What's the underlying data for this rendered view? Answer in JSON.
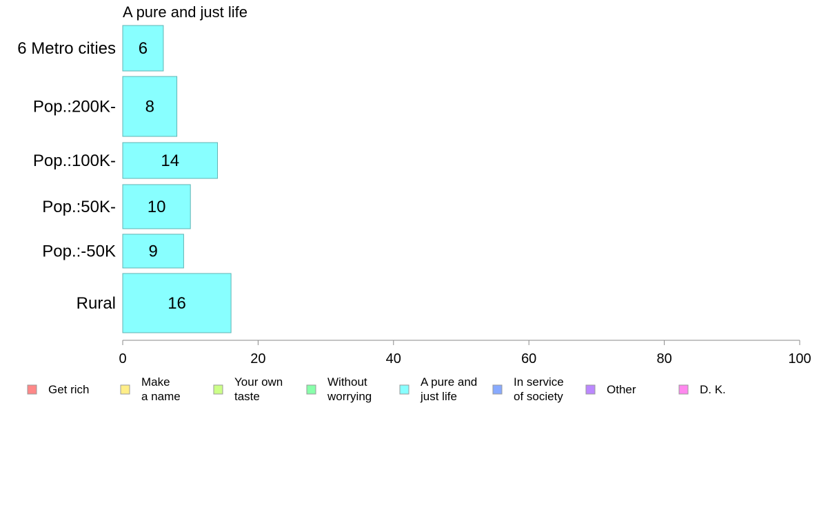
{
  "chart_data": {
    "type": "bar",
    "orientation": "horizontal",
    "title": "A pure and just life",
    "xlabel": "",
    "ylabel": "",
    "xlim": [
      0,
      100
    ],
    "xticks": [
      0,
      20,
      40,
      60,
      80,
      100
    ],
    "grid": false,
    "categories": [
      "6 Metro cities",
      "Pop.:200K-",
      "Pop.:100K-",
      "Pop.:50K-",
      "Pop.:-50K",
      "Rural"
    ],
    "values": [
      6,
      8,
      14,
      10,
      9,
      16
    ],
    "series_color": "#88ffff",
    "legend_placement": "bottom",
    "legend": [
      {
        "lines": [
          "Get rich"
        ],
        "color": "#ff8888"
      },
      {
        "lines": [
          "Make",
          "a name"
        ],
        "color": "#ffee88"
      },
      {
        "lines": [
          "Your own",
          "taste"
        ],
        "color": "#ccff88"
      },
      {
        "lines": [
          "Without",
          "worrying"
        ],
        "color": "#88ffaa"
      },
      {
        "lines": [
          "A pure and",
          "just life"
        ],
        "color": "#88ffff"
      },
      {
        "lines": [
          "In service",
          "of society"
        ],
        "color": "#88aaff"
      },
      {
        "lines": [
          "Other"
        ],
        "color": "#bb88ff"
      },
      {
        "lines": [
          "D. K."
        ],
        "color": "#ff88ee"
      }
    ]
  }
}
